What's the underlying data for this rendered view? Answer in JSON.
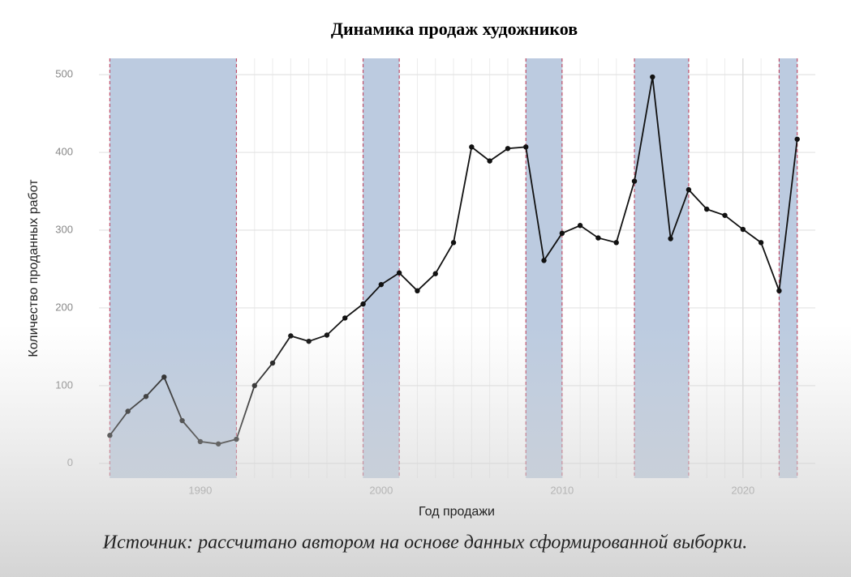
{
  "chart_data": {
    "type": "line",
    "title": "Динамика продаж художников",
    "x_label": "Год продажи",
    "y_label": "Количество проданных работ",
    "source": "Источник: рассчитано автором на основе данных сформированной выборки.",
    "x": [
      1985,
      1986,
      1987,
      1988,
      1989,
      1990,
      1991,
      1992,
      1993,
      1994,
      1995,
      1996,
      1997,
      1998,
      1999,
      2000,
      2001,
      2002,
      2003,
      2004,
      2005,
      2006,
      2007,
      2008,
      2009,
      2010,
      2011,
      2012,
      2013,
      2014,
      2015,
      2016,
      2017,
      2018,
      2019,
      2020,
      2021,
      2022,
      2023
    ],
    "values": [
      36,
      67,
      86,
      111,
      55,
      28,
      25,
      31,
      100,
      129,
      164,
      157,
      165,
      187,
      205,
      230,
      245,
      222,
      244,
      284,
      407,
      389,
      405,
      407,
      261,
      296,
      306,
      290,
      284,
      363,
      497,
      289,
      352,
      327,
      319,
      301,
      284,
      222,
      417
    ],
    "color": "#111111",
    "shaded_periods": [
      [
        1985,
        1992
      ],
      [
        1999,
        2001
      ],
      [
        2008,
        2010
      ],
      [
        2014,
        2017
      ],
      [
        2022,
        2023
      ]
    ],
    "shade_color": "#bccbe0",
    "boundary_color": "#c0506a",
    "xlim": [
      1984.4,
      2024
    ],
    "ylim": [
      -19,
      521
    ],
    "xticks": [
      1990,
      2000,
      2010,
      2020
    ],
    "yticks": [
      0,
      100,
      200,
      300,
      400,
      500
    ],
    "grid": true
  }
}
